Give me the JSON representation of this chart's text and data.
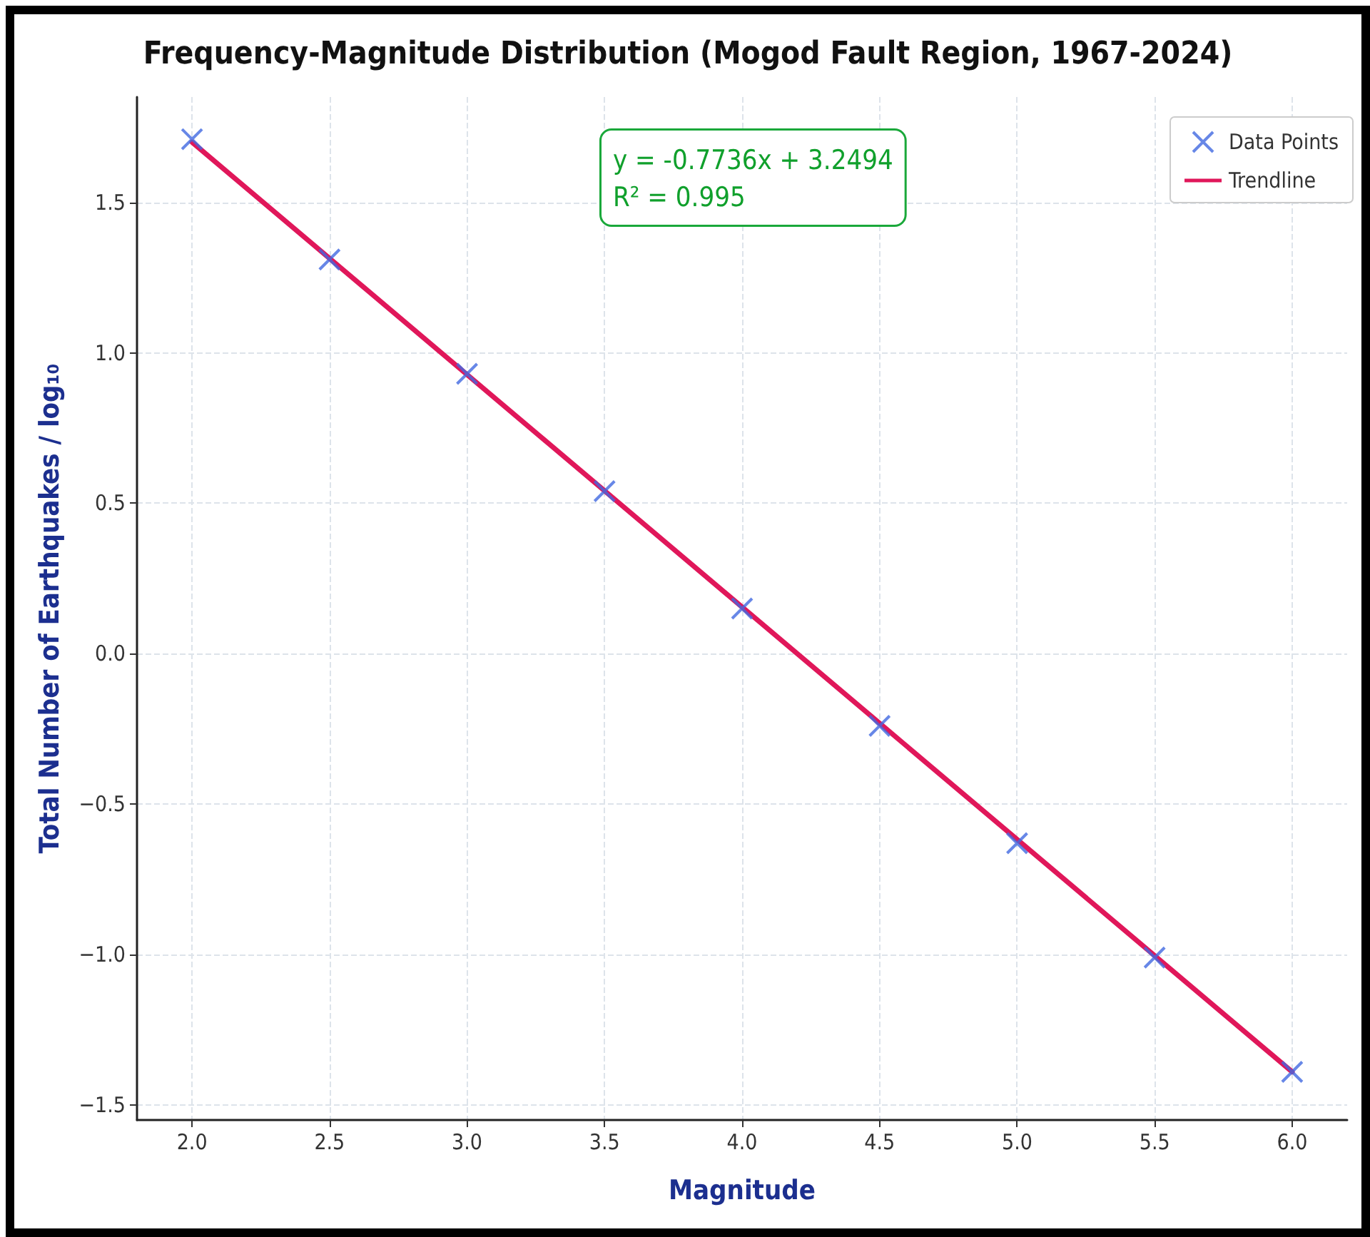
{
  "chart_data": {
    "type": "scatter",
    "title": "Frequency-Magnitude Distribution (Mogod Fault Region, 1967-2024)",
    "xlabel": "Magnitude",
    "ylabel": "Total Number of Earthquakes / log₁₀",
    "annotations": [
      "y = -0.7736x + 3.2494",
      "R² = 0.995"
    ],
    "series": [
      {
        "name": "Data Points",
        "marker": "cross",
        "color": "#4169e1",
        "x": [
          2.0,
          2.5,
          3.0,
          3.5,
          4.0,
          4.5,
          5.0,
          5.5,
          6.0
        ],
        "values": [
          1.71,
          1.31,
          0.93,
          0.54,
          0.15,
          -0.24,
          -0.63,
          -1.01,
          -1.39
        ]
      },
      {
        "name": "Trendline",
        "type": "line",
        "marker": "none",
        "line_style": "solid",
        "color": "#e0175a",
        "x": [
          2.0,
          6.0
        ],
        "values": [
          1.7,
          -1.39
        ]
      }
    ],
    "xlim": [
      1.8,
      6.2
    ],
    "xticks": [
      {
        "value": 2,
        "label": "2.0"
      },
      {
        "value": 2.5,
        "label": "2.5"
      },
      {
        "value": 3,
        "label": "3.0"
      },
      {
        "value": 3.5,
        "label": "3.5"
      },
      {
        "value": 4,
        "label": "4.0"
      },
      {
        "value": 4.5,
        "label": "4.5"
      },
      {
        "value": 5,
        "label": "5.0"
      },
      {
        "value": 5.5,
        "label": "5.5"
      },
      {
        "value": 6,
        "label": "6.0"
      }
    ],
    "ylim": [
      -1.55,
      1.85
    ],
    "yticks": [
      {
        "value": -1.5,
        "label": "−1.5"
      },
      {
        "value": -1,
        "label": "−1.0"
      },
      {
        "value": -0.5,
        "label": "−0.5"
      },
      {
        "value": 0,
        "label": "0.0"
      },
      {
        "value": 0.5,
        "label": "0.5"
      },
      {
        "value": 1,
        "label": "1.0"
      },
      {
        "value": 1.5,
        "label": "1.5"
      }
    ],
    "grid": true,
    "legend": "top right"
  }
}
